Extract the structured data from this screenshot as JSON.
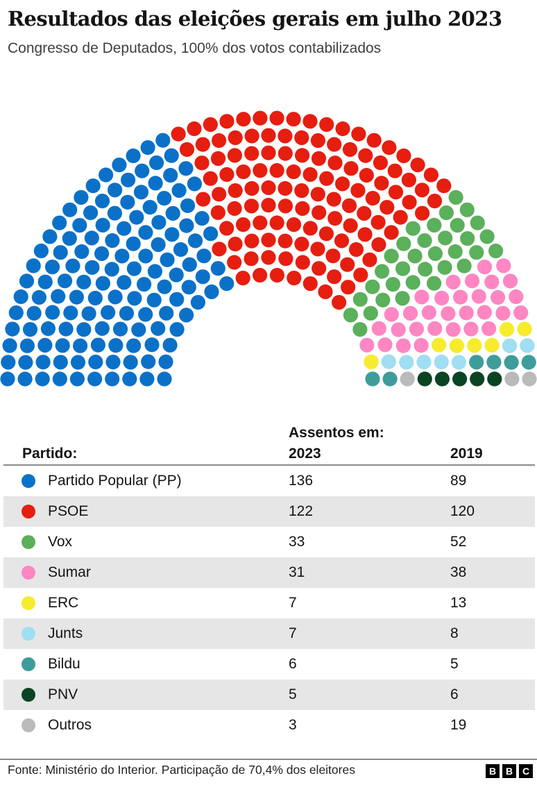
{
  "header": {
    "title": "Resultados das eleições gerais em julho 2023",
    "subtitle": "Congresso de Deputados, 100% dos votos contabilizados"
  },
  "table": {
    "col_party": "Partido:",
    "col_group": "Assentos em:",
    "col_2023": "2023",
    "col_2019": "2019",
    "rows": [
      {
        "party": "Partido Popular (PP)",
        "color": "#0b71c8",
        "seats_2023": "136",
        "seats_2019": "89"
      },
      {
        "party": "PSOE",
        "color": "#e61e10",
        "seats_2023": "122",
        "seats_2019": "120"
      },
      {
        "party": "Vox",
        "color": "#5bb05b",
        "seats_2023": "33",
        "seats_2019": "52"
      },
      {
        "party": "Sumar",
        "color": "#fd86c3",
        "seats_2023": "31",
        "seats_2019": "38"
      },
      {
        "party": "ERC",
        "color": "#f7eb2e",
        "seats_2023": "7",
        "seats_2019": "13"
      },
      {
        "party": "Junts",
        "color": "#9fdef3",
        "seats_2023": "7",
        "seats_2019": "8"
      },
      {
        "party": "Bildu",
        "color": "#3e9c9a",
        "seats_2023": "6",
        "seats_2019": "5"
      },
      {
        "party": "PNV",
        "color": "#0b4423",
        "seats_2023": "5",
        "seats_2019": "6"
      },
      {
        "party": "Outros",
        "color": "#bababa",
        "seats_2023": "3",
        "seats_2019": "19"
      }
    ]
  },
  "footer": {
    "source": "Fonte: Ministério do Interior. Participação de 70,4% dos eleitores",
    "logo": [
      "B",
      "B",
      "C"
    ]
  },
  "chart_data": {
    "type": "parliament",
    "title": "Resultados das eleições gerais em julho 2023",
    "subtitle": "Congresso de Deputados, 100% dos votos contabilizados",
    "total_seats": 350,
    "rows": 10,
    "categories": [
      "Partido Popular (PP)",
      "PSOE",
      "Vox",
      "Sumar",
      "ERC",
      "Junts",
      "Bildu",
      "PNV",
      "Outros"
    ],
    "colors": [
      "#0b71c8",
      "#e61e10",
      "#5bb05b",
      "#fd86c3",
      "#f7eb2e",
      "#9fdef3",
      "#3e9c9a",
      "#0b4423",
      "#bababa"
    ],
    "series": [
      {
        "name": "2023",
        "values": [
          136,
          122,
          33,
          31,
          7,
          7,
          6,
          5,
          3
        ]
      },
      {
        "name": "2019",
        "values": [
          89,
          120,
          52,
          38,
          13,
          8,
          5,
          6,
          19
        ]
      }
    ]
  }
}
